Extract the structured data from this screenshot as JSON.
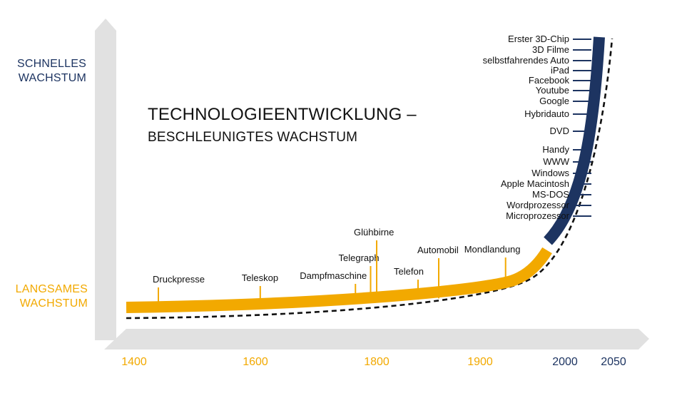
{
  "chart_data": {
    "type": "line",
    "title": "TECHNOLOGIEENTWICKLUNG –",
    "subtitle": "BESCHLEUNIGTES WACHSTUM",
    "y_axis_labels": {
      "fast": [
        "SCHNELLES",
        "WACHSTUM"
      ],
      "slow": [
        "LANGSAMES",
        "WACHSTUM"
      ]
    },
    "x_ticks": [
      {
        "label": "1400",
        "value": 1400,
        "era": "slow"
      },
      {
        "label": "1600",
        "value": 1600,
        "era": "slow"
      },
      {
        "label": "1800",
        "value": 1800,
        "era": "slow"
      },
      {
        "label": "1900",
        "value": 1900,
        "era": "slow"
      },
      {
        "label": "2000",
        "value": 2000,
        "era": "fast"
      },
      {
        "label": "2050",
        "value": 2050,
        "era": "fast"
      }
    ],
    "slow_events": [
      {
        "label": "Druckpresse",
        "year": 1440
      },
      {
        "label": "Teleskop",
        "year": 1608
      },
      {
        "label": "Dampfmaschine",
        "year": 1765
      },
      {
        "label": "Telegraph",
        "year": 1790
      },
      {
        "label": "Glühbirne",
        "year": 1800
      },
      {
        "label": "Telefon",
        "year": 1840
      },
      {
        "label": "Automobil",
        "year": 1860
      },
      {
        "label": "Mondlandung",
        "year": 1930
      }
    ],
    "fast_events": [
      "Erster 3D-Chip",
      "3D Filme",
      "selbstfahrendes Auto",
      "iPad",
      "Facebook",
      "Youtube",
      "Google",
      "Hybridauto",
      "DVD",
      "Handy",
      "WWW",
      "Windows",
      "Apple Macintosh",
      "MS-DOS",
      "Wordprozessor",
      "Microprozessor"
    ],
    "colors": {
      "slow": "#f2a900",
      "fast": "#1d3461",
      "axis": "#e1e1e1",
      "dashed": "#111111"
    },
    "grid": false,
    "legend": "none"
  }
}
